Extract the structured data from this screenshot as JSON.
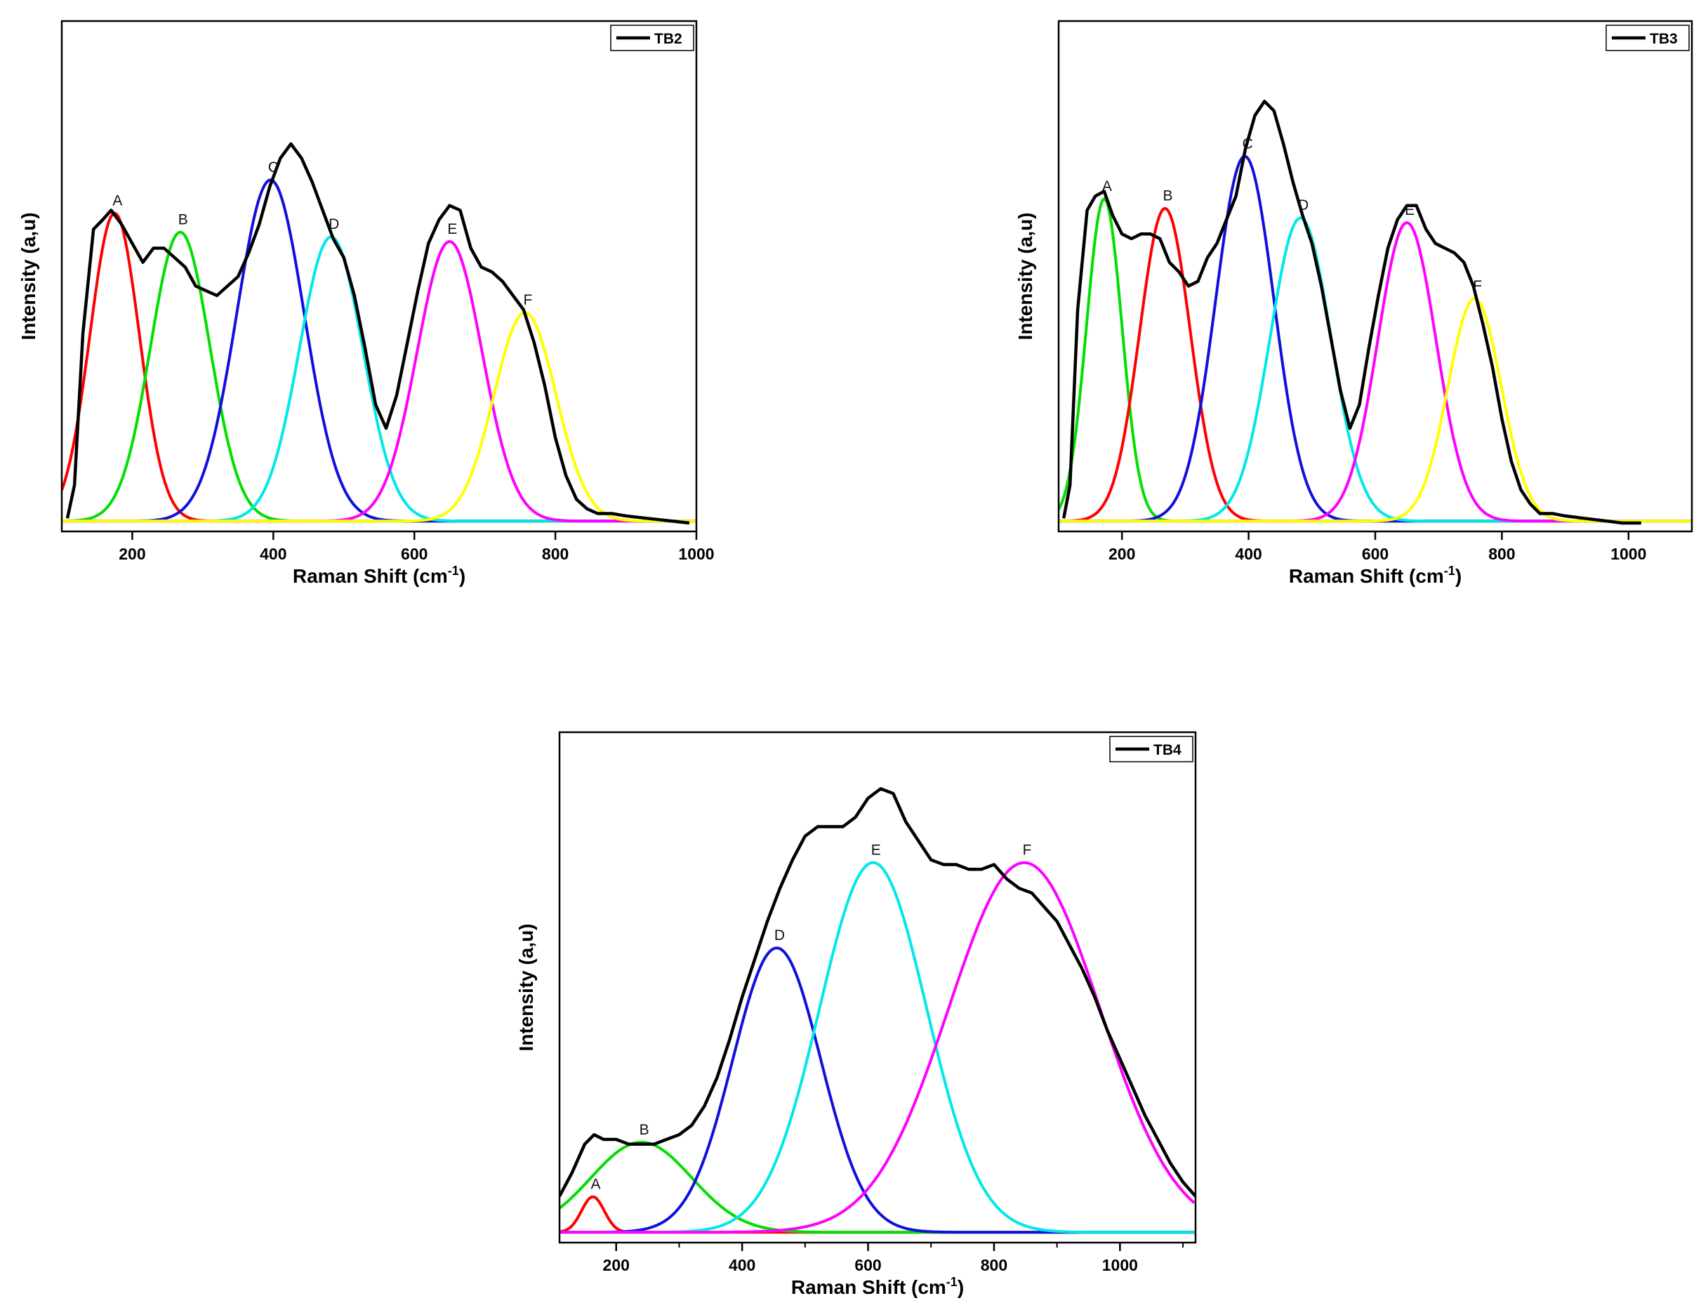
{
  "chart_data": [
    {
      "type": "line",
      "legend": "TB2",
      "legend_position": "top-right",
      "xlabel": "Raman Shift (cm",
      "xlabel_sup": "-1",
      "xlabel_end": ")",
      "ylabel": "Intensity (a,u)",
      "xlim": [
        100,
        1000
      ],
      "ylim": [
        0,
        1.0
      ],
      "xticks": [
        200,
        400,
        600,
        800,
        1000
      ],
      "yticks_visible": false,
      "grid": false,
      "measured_series": {
        "name": "TB2",
        "color": "#000000",
        "x": [
          108,
          118,
          130,
          145,
          158,
          170,
          185,
          200,
          215,
          230,
          245,
          260,
          275,
          290,
          305,
          320,
          335,
          350,
          365,
          380,
          395,
          410,
          425,
          440,
          455,
          470,
          485,
          500,
          515,
          530,
          545,
          560,
          575,
          590,
          605,
          620,
          635,
          650,
          665,
          680,
          695,
          710,
          725,
          740,
          755,
          770,
          785,
          800,
          815,
          830,
          845,
          860,
          880,
          900,
          930,
          960,
          990
        ],
        "y": [
          0.01,
          0.08,
          0.4,
          0.62,
          0.64,
          0.66,
          0.63,
          0.59,
          0.55,
          0.58,
          0.58,
          0.56,
          0.54,
          0.5,
          0.49,
          0.48,
          0.5,
          0.52,
          0.57,
          0.63,
          0.71,
          0.77,
          0.8,
          0.77,
          0.72,
          0.66,
          0.6,
          0.56,
          0.48,
          0.37,
          0.25,
          0.2,
          0.27,
          0.38,
          0.49,
          0.59,
          0.64,
          0.67,
          0.66,
          0.58,
          0.54,
          0.53,
          0.51,
          0.48,
          0.45,
          0.38,
          0.29,
          0.18,
          0.1,
          0.05,
          0.03,
          0.02,
          0.02,
          0.015,
          0.01,
          0.005,
          0.0
        ]
      },
      "peaks": [
        {
          "label": "A",
          "center": 175,
          "height": 0.65,
          "width": 35,
          "color": "#ff0000"
        },
        {
          "label": "B",
          "center": 268,
          "height": 0.61,
          "width": 42,
          "color": "#00e000"
        },
        {
          "label": "C",
          "center": 396,
          "height": 0.72,
          "width": 48,
          "color": "#1010dd"
        },
        {
          "label": "D",
          "center": 482,
          "height": 0.6,
          "width": 45,
          "color": "#00e8e8"
        },
        {
          "label": "E",
          "center": 650,
          "height": 0.59,
          "width": 46,
          "color": "#ff00ff"
        },
        {
          "label": "F",
          "center": 757,
          "height": 0.44,
          "width": 44,
          "color": "#ffff00"
        }
      ]
    },
    {
      "type": "line",
      "legend": "TB3",
      "legend_position": "top-right",
      "xlabel": "Raman Shift (cm",
      "xlabel_sup": "-1",
      "xlabel_end": ")",
      "ylabel": "Intensity (a,u)",
      "xlim": [
        100,
        1100
      ],
      "ylim": [
        0,
        1.0
      ],
      "xticks": [
        200,
        400,
        600,
        800,
        1000
      ],
      "yticks_visible": false,
      "grid": false,
      "measured_series": {
        "name": "TB3",
        "color": "#000000",
        "x": [
          108,
          118,
          130,
          145,
          158,
          172,
          185,
          200,
          215,
          230,
          245,
          260,
          275,
          290,
          305,
          320,
          335,
          350,
          365,
          380,
          395,
          410,
          425,
          440,
          455,
          470,
          485,
          500,
          515,
          530,
          545,
          560,
          575,
          590,
          605,
          620,
          635,
          650,
          665,
          680,
          695,
          710,
          725,
          740,
          755,
          770,
          785,
          800,
          815,
          830,
          845,
          860,
          880,
          900,
          930,
          960,
          990,
          1020
        ],
        "y": [
          0.01,
          0.08,
          0.45,
          0.66,
          0.69,
          0.7,
          0.65,
          0.61,
          0.6,
          0.61,
          0.61,
          0.6,
          0.55,
          0.53,
          0.5,
          0.51,
          0.56,
          0.59,
          0.64,
          0.69,
          0.79,
          0.86,
          0.89,
          0.87,
          0.8,
          0.72,
          0.65,
          0.59,
          0.5,
          0.39,
          0.28,
          0.2,
          0.25,
          0.37,
          0.48,
          0.58,
          0.64,
          0.67,
          0.67,
          0.62,
          0.59,
          0.58,
          0.57,
          0.55,
          0.5,
          0.42,
          0.33,
          0.22,
          0.13,
          0.07,
          0.04,
          0.02,
          0.02,
          0.015,
          0.01,
          0.005,
          0.0,
          0.0
        ]
      },
      "peaks": [
        {
          "label": "A",
          "center": 172,
          "height": 0.68,
          "width": 28,
          "color": "#00e000"
        },
        {
          "label": "B",
          "center": 268,
          "height": 0.66,
          "width": 40,
          "color": "#ff0000"
        },
        {
          "label": "C",
          "center": 394,
          "height": 0.77,
          "width": 46,
          "color": "#1010dd"
        },
        {
          "label": "D",
          "center": 482,
          "height": 0.64,
          "width": 48,
          "color": "#00e8e8"
        },
        {
          "label": "E",
          "center": 650,
          "height": 0.63,
          "width": 46,
          "color": "#ff00ff"
        },
        {
          "label": "F",
          "center": 757,
          "height": 0.47,
          "width": 42,
          "color": "#ffff00"
        }
      ]
    },
    {
      "type": "line",
      "legend": "TB4",
      "legend_position": "top-right",
      "xlabel": "Raman Shift (cm",
      "xlabel_sup": "-1",
      "xlabel_end": ")",
      "ylabel": "Intensity (a,u)",
      "xlim": [
        110,
        1120
      ],
      "ylim": [
        0,
        1.0
      ],
      "xticks": [
        200,
        400,
        600,
        800,
        1000
      ],
      "yticks_visible": false,
      "grid": false,
      "measured_series": {
        "name": "TB4",
        "color": "#000000",
        "x": [
          110,
          130,
          150,
          165,
          180,
          200,
          220,
          240,
          260,
          280,
          300,
          320,
          340,
          360,
          380,
          400,
          420,
          440,
          460,
          480,
          500,
          520,
          540,
          560,
          580,
          600,
          620,
          640,
          660,
          680,
          700,
          720,
          740,
          760,
          780,
          800,
          820,
          840,
          860,
          880,
          900,
          920,
          940,
          960,
          980,
          1000,
          1020,
          1040,
          1060,
          1080,
          1100,
          1120
        ],
        "y": [
          0.08,
          0.13,
          0.19,
          0.21,
          0.2,
          0.2,
          0.19,
          0.19,
          0.19,
          0.2,
          0.21,
          0.23,
          0.27,
          0.33,
          0.41,
          0.5,
          0.58,
          0.66,
          0.73,
          0.79,
          0.84,
          0.86,
          0.86,
          0.86,
          0.88,
          0.92,
          0.94,
          0.93,
          0.87,
          0.83,
          0.79,
          0.78,
          0.78,
          0.77,
          0.77,
          0.78,
          0.75,
          0.73,
          0.72,
          0.69,
          0.66,
          0.61,
          0.56,
          0.5,
          0.43,
          0.37,
          0.31,
          0.25,
          0.2,
          0.15,
          0.11,
          0.08
        ]
      },
      "peaks": [
        {
          "label": "A",
          "center": 163,
          "height": 0.075,
          "width": 18,
          "color": "#ff0000"
        },
        {
          "label": "B",
          "center": 240,
          "height": 0.19,
          "width": 80,
          "color": "#00e000"
        },
        {
          "label": "D",
          "center": 455,
          "height": 0.6,
          "width": 70,
          "color": "#1010dd"
        },
        {
          "label": "E",
          "center": 608,
          "height": 0.78,
          "width": 85,
          "color": "#00e8e8"
        },
        {
          "label": "F",
          "center": 848,
          "height": 0.78,
          "width": 120,
          "color": "#ff00ff"
        }
      ]
    }
  ]
}
